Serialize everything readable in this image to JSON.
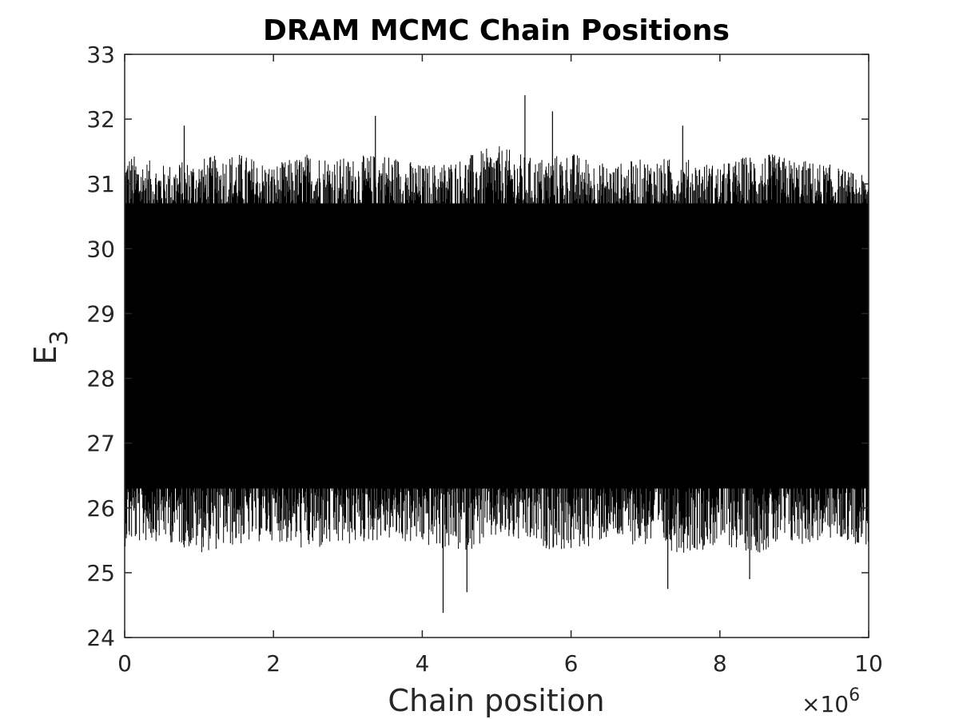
{
  "chart_data": {
    "type": "line",
    "title": "DRAM MCMC Chain Positions",
    "xlabel": "Chain position",
    "ylabel": "E",
    "ylabel_subscript": "3",
    "x_multiplier": "×10",
    "x_multiplier_exponent": "6",
    "xlim": [
      0,
      10
    ],
    "ylim": [
      24,
      33
    ],
    "x_ticks": [
      0,
      2,
      4,
      6,
      8,
      10
    ],
    "y_ticks": [
      24,
      25,
      26,
      27,
      28,
      29,
      30,
      31,
      32,
      33
    ],
    "grid": false,
    "series": [
      {
        "color": "#000000",
        "core_band": [
          26.3,
          30.7
        ],
        "envelope_x": [
          0,
          0.5,
          1,
          1.5,
          2,
          2.5,
          3,
          3.5,
          4,
          4.5,
          5,
          5.5,
          6,
          6.5,
          7,
          7.5,
          8,
          8.5,
          9,
          9.5,
          10
        ],
        "envelope_upper": [
          31.5,
          31.3,
          31.4,
          31.5,
          31.3,
          31.5,
          31.4,
          31.5,
          31.3,
          31.4,
          31.6,
          31.4,
          31.5,
          31.3,
          31.4,
          31.4,
          31.3,
          31.5,
          31.4,
          31.3,
          31.1
        ],
        "envelope_lower": [
          25.4,
          25.5,
          25.3,
          25.4,
          25.5,
          25.3,
          25.4,
          25.5,
          25.4,
          25.3,
          25.5,
          25.4,
          25.3,
          25.5,
          25.4,
          25.3,
          25.4,
          25.3,
          25.4,
          25.5,
          25.4
        ],
        "extreme_points": [
          {
            "x": 0.8,
            "y": 31.9
          },
          {
            "x": 3.37,
            "y": 32.05
          },
          {
            "x": 4.28,
            "y": 24.38
          },
          {
            "x": 4.6,
            "y": 24.7
          },
          {
            "x": 5.38,
            "y": 32.37
          },
          {
            "x": 5.75,
            "y": 32.12
          },
          {
            "x": 7.3,
            "y": 24.75
          },
          {
            "x": 7.5,
            "y": 31.9
          },
          {
            "x": 8.4,
            "y": 24.9
          }
        ]
      }
    ]
  }
}
